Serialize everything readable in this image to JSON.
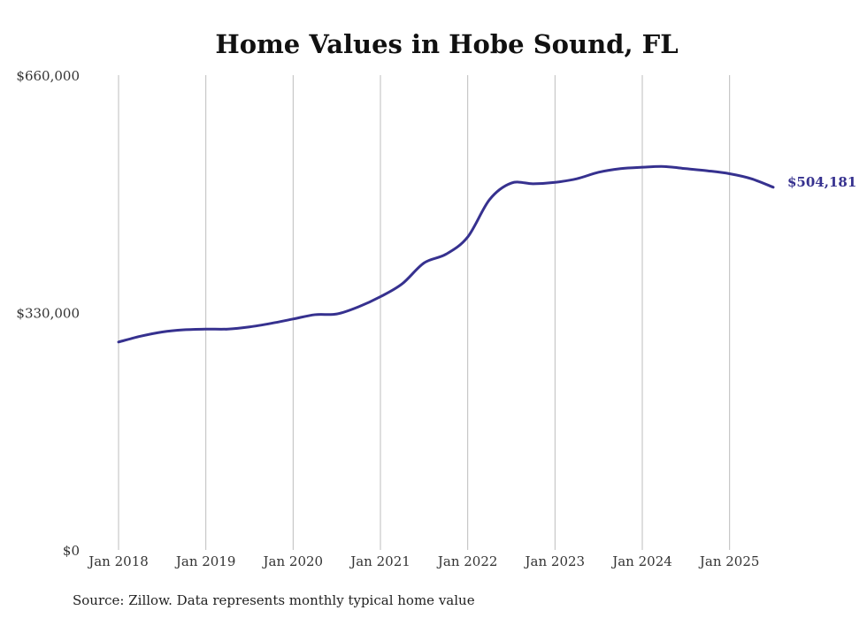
{
  "chart_data": {
    "type": "line",
    "title": "Home Values in Hobe Sound, FL",
    "xlabel": "",
    "ylabel": "",
    "source": "Source: Zillow. Data represents monthly typical home value",
    "x_ticks": [
      "Jan 2018",
      "Jan 2019",
      "Jan 2020",
      "Jan 2021",
      "Jan 2022",
      "Jan 2023",
      "Jan 2024",
      "Jan 2025"
    ],
    "y_ticks": [
      0,
      330000,
      660000
    ],
    "y_tick_labels": [
      "$0",
      "$330,000",
      "$660,000"
    ],
    "ylim": [
      0,
      660000
    ],
    "xlim": [
      "2018-01",
      "2025-07"
    ],
    "grid": "vertical",
    "line_color": "#36318f",
    "end_label": "$504,181",
    "series": [
      {
        "x": [
          "2018-01",
          "2018-04",
          "2018-07",
          "2018-10",
          "2019-01",
          "2019-04",
          "2019-07",
          "2019-10",
          "2020-01",
          "2020-04",
          "2020-07",
          "2020-10",
          "2021-01",
          "2021-04",
          "2021-07",
          "2021-10",
          "2022-01",
          "2022-04",
          "2022-07",
          "2022-10",
          "2023-01",
          "2023-04",
          "2023-07",
          "2023-10",
          "2024-01",
          "2024-04",
          "2024-07",
          "2024-10",
          "2025-01",
          "2025-04",
          "2025-07"
        ],
        "values": [
          289000,
          297000,
          303000,
          306000,
          307000,
          307000,
          310000,
          315000,
          321000,
          327000,
          328000,
          338000,
          352000,
          370000,
          399000,
          411000,
          435000,
          487000,
          510000,
          509000,
          511000,
          516000,
          525000,
          530000,
          532000,
          533000,
          530000,
          527000,
          523000,
          516000,
          504181
        ]
      }
    ]
  }
}
